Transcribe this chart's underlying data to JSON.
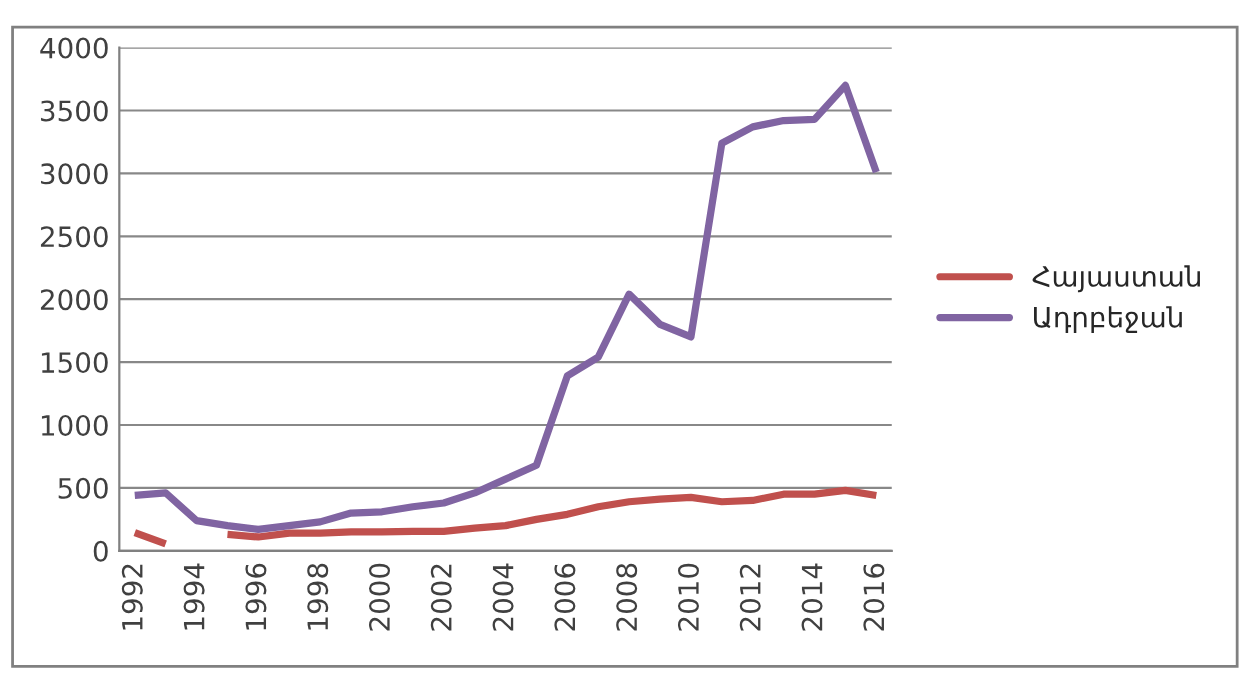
{
  "chart_data": {
    "type": "line",
    "categories": [
      "1992",
      null,
      "1994",
      null,
      "1996",
      null,
      "1998",
      null,
      "2000",
      null,
      "2002",
      null,
      "2004",
      null,
      "2006",
      null,
      "2008",
      null,
      "2010",
      null,
      "2012",
      null,
      "2014",
      null,
      "2016"
    ],
    "series": [
      {
        "name": "Հայաստան",
        "color": "#c0504d",
        "values": [
          145,
          55,
          null,
          130,
          110,
          140,
          140,
          150,
          150,
          155,
          155,
          180,
          200,
          250,
          290,
          350,
          390,
          410,
          425,
          390,
          400,
          450,
          450,
          480,
          440
        ]
      },
      {
        "name": "Ադրբեջան",
        "color": "#8064a2",
        "values": [
          440,
          460,
          240,
          200,
          170,
          200,
          230,
          300,
          310,
          350,
          380,
          460,
          570,
          680,
          1390,
          1540,
          2040,
          1800,
          1700,
          3240,
          3370,
          3420,
          3430,
          3700,
          3010
        ]
      }
    ],
    "ylim": [
      0,
      4000
    ],
    "yticks": [
      0,
      500,
      1000,
      1500,
      2000,
      2500,
      3000,
      3500,
      4000
    ],
    "grid": "y",
    "legend": "right",
    "marker": "none",
    "line_style": "solid"
  }
}
